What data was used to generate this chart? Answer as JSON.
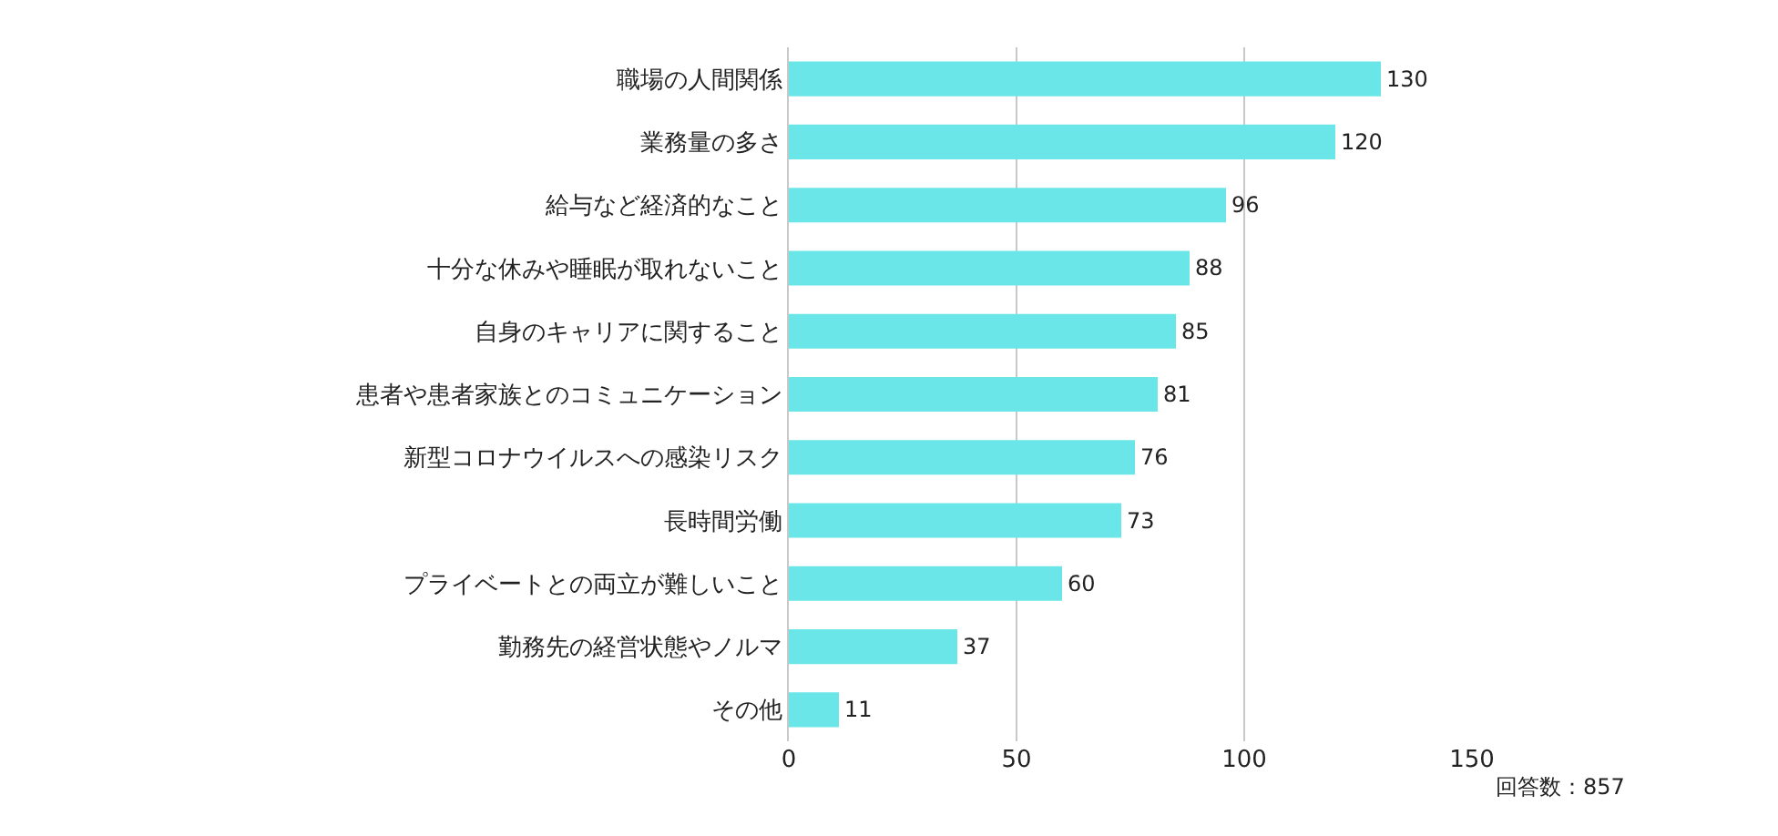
{
  "chart_data": {
    "type": "bar",
    "orientation": "horizontal",
    "categories": [
      "職場の人間関係",
      "業務量の多さ",
      "給与など経済的なこと",
      "十分な休みや睡眠が取れないこと",
      "自身のキャリアに関すること",
      "患者や患者家族とのコミュニケーション",
      "新型コロナウイルスへの感染リスク",
      "長時間労働",
      "プライベートとの両立が難しいこと",
      "勤務先の経営状態やノルマ",
      "その他"
    ],
    "values": [
      130,
      120,
      96,
      88,
      85,
      81,
      76,
      73,
      60,
      37,
      11
    ],
    "color": "#6be6e8",
    "xlim": [
      0,
      150
    ],
    "xticks": [
      0,
      50,
      100,
      150
    ],
    "grid": "x",
    "data_labels": true,
    "annotations": [
      "回答数：857"
    ]
  }
}
